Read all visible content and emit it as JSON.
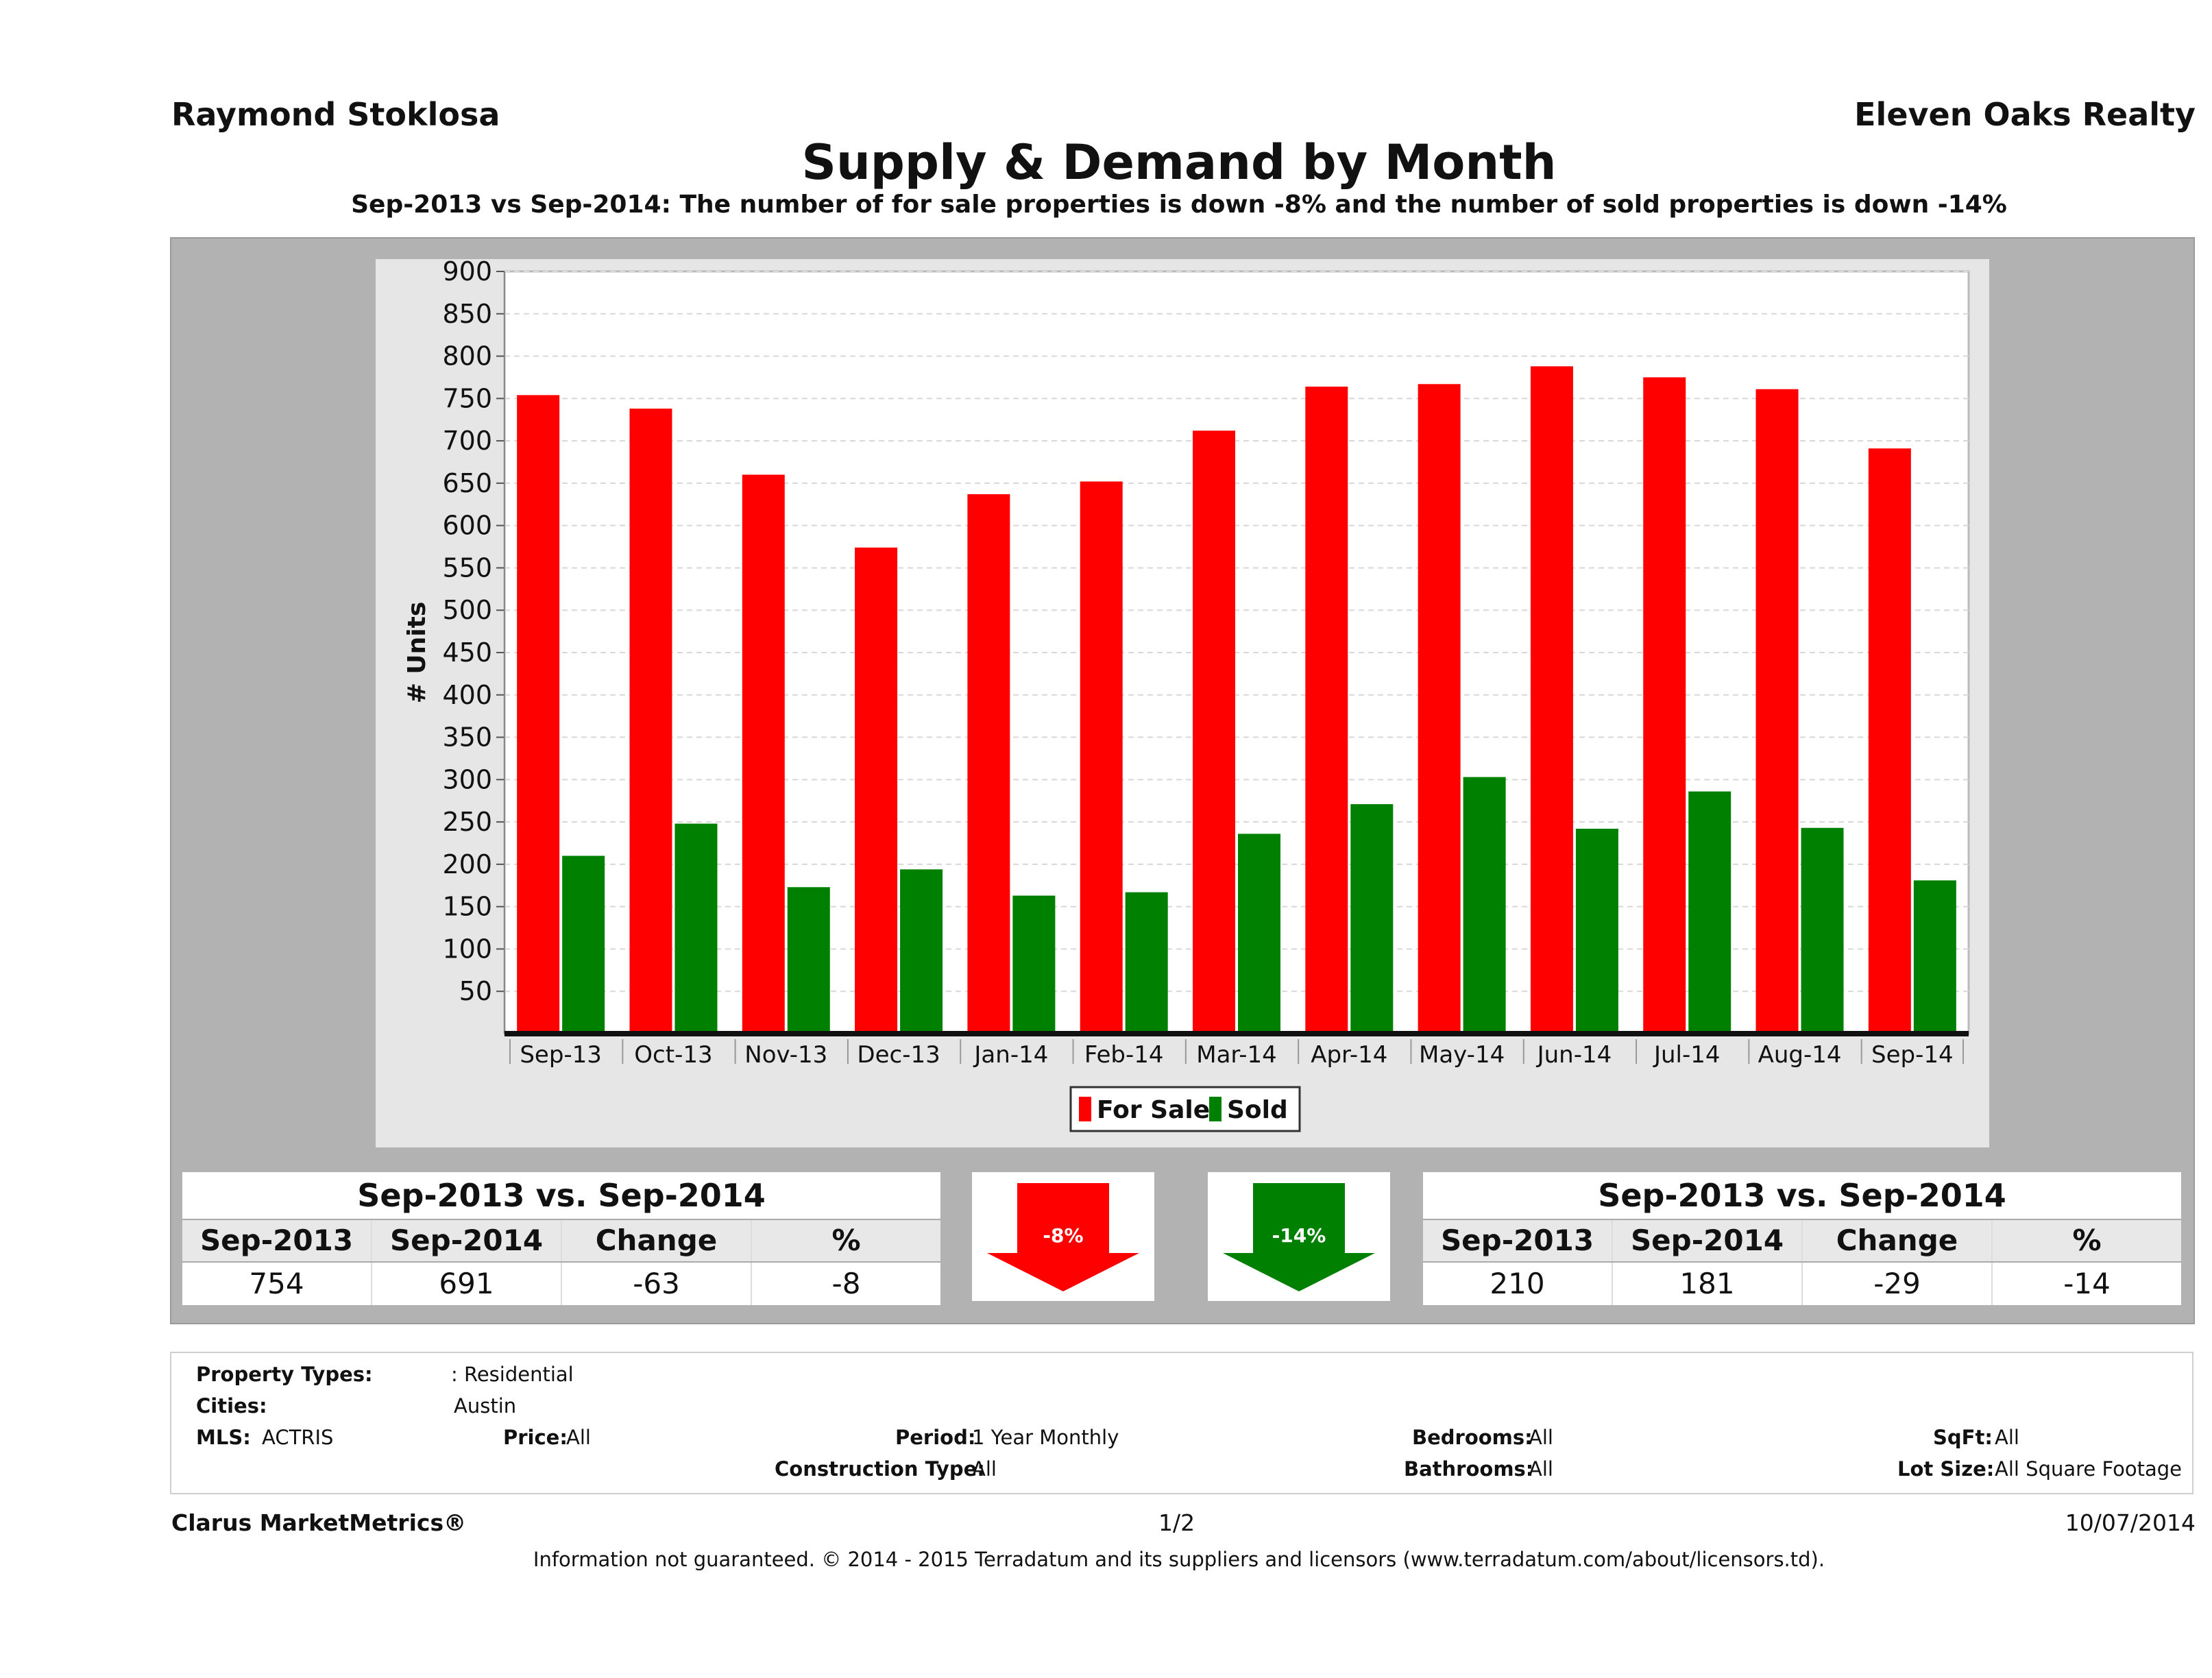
{
  "header": {
    "agent": "Raymond Stoklosa",
    "brokerage": "Eleven Oaks Realty",
    "title": "Supply & Demand by Month",
    "subtitle": "Sep-2013 vs Sep-2014: The number of for sale properties is down -8% and the number of sold properties is down -14%"
  },
  "chart_data": {
    "type": "bar",
    "title": "Supply & Demand by Month",
    "xlabel": "",
    "ylabel": "# Units",
    "ylim": [
      0,
      900
    ],
    "yticks": [
      50,
      100,
      150,
      200,
      250,
      300,
      350,
      400,
      450,
      500,
      550,
      600,
      650,
      700,
      750,
      800,
      850,
      900
    ],
    "categories": [
      "Sep-13",
      "Oct-13",
      "Nov-13",
      "Dec-13",
      "Jan-14",
      "Feb-14",
      "Mar-14",
      "Apr-14",
      "May-14",
      "Jun-14",
      "Jul-14",
      "Aug-14",
      "Sep-14"
    ],
    "series": [
      {
        "name": "For Sale",
        "color": "#ff0000",
        "values": [
          754,
          738,
          660,
          574,
          637,
          652,
          712,
          764,
          767,
          788,
          775,
          761,
          691
        ]
      },
      {
        "name": "Sold",
        "color": "#008000",
        "values": [
          210,
          248,
          173,
          194,
          163,
          167,
          236,
          271,
          303,
          242,
          286,
          243,
          181
        ]
      }
    ],
    "legend": "bottom-center",
    "grid": true
  },
  "forsale_table": {
    "title": "Sep-2013 vs. Sep-2014",
    "headers": [
      "Sep-2013",
      "Sep-2014",
      "Change",
      "%"
    ],
    "values": [
      "754",
      "691",
      "-63",
      "-8"
    ]
  },
  "sold_table": {
    "title": "Sep-2013 vs. Sep-2014",
    "headers": [
      "Sep-2013",
      "Sep-2014",
      "Change",
      "%"
    ],
    "values": [
      "210",
      "181",
      "-29",
      "-14"
    ]
  },
  "arrows": {
    "forsale": {
      "label": "-8%",
      "color": "#ff0000"
    },
    "sold": {
      "label": "-14%",
      "color": "#008000"
    }
  },
  "info": {
    "property_types_label": "Property Types:",
    "property_types_value": ": Residential",
    "cities_label": "Cities:",
    "cities_value": "Austin",
    "mls_label": "MLS:",
    "mls_value": "ACTRIS",
    "price_label": "Price:",
    "price_value": "All",
    "period_label": "Period:",
    "period_value": "1 Year Monthly",
    "construction_label": "Construction Type:",
    "construction_value": "All",
    "bedrooms_label": "Bedrooms:",
    "bedrooms_value": "All",
    "bathrooms_label": "Bathrooms:",
    "bathrooms_value": "All",
    "sqft_label": "SqFt:",
    "sqft_value": "All",
    "lotsize_label": "Lot Size:",
    "lotsize_value": "All Square Footage"
  },
  "footer": {
    "product": "Clarus MarketMetrics®",
    "page": "1/2",
    "date": "10/07/2014",
    "disclaimer": "Information not guaranteed. © 2014 - 2015 Terradatum and its suppliers and licensors (www.terradatum.com/about/licensors.td)."
  }
}
